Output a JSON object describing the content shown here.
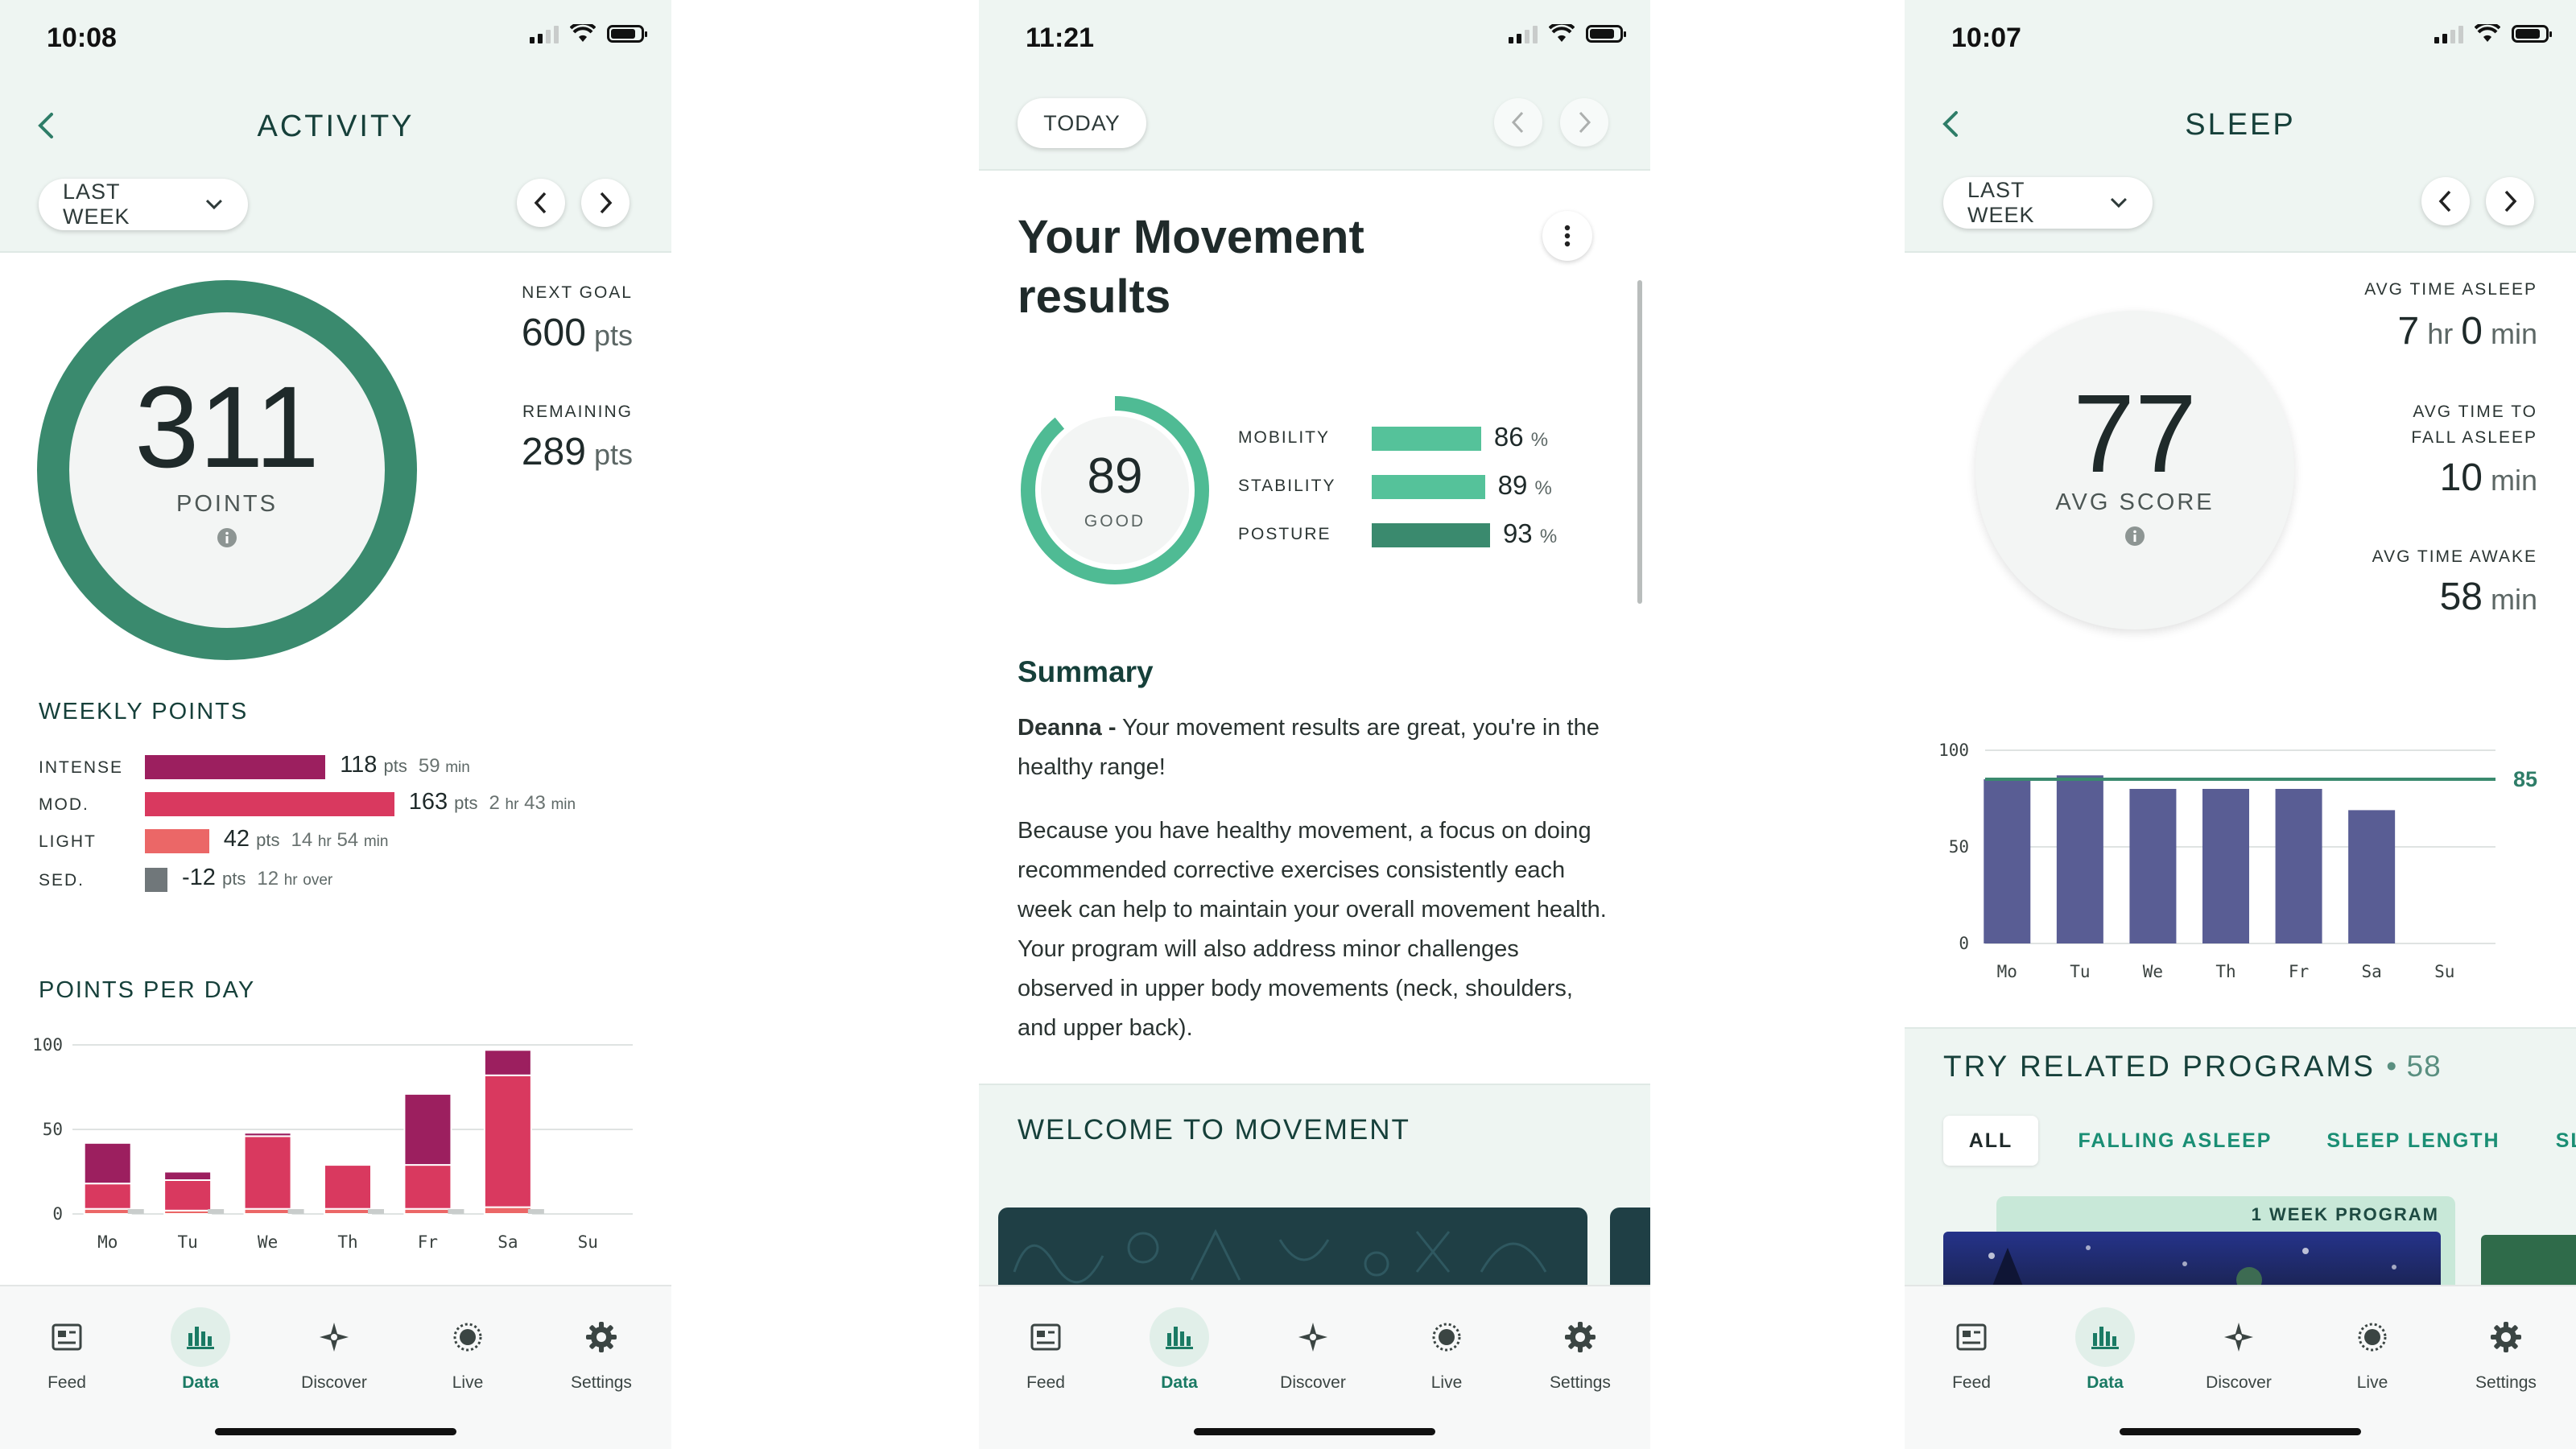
{
  "status_bars": [
    {
      "time": "10:08"
    },
    {
      "time": "11:21"
    },
    {
      "time": "10:07"
    }
  ],
  "tabbar": [
    {
      "label": "Feed",
      "icon": "feed-icon"
    },
    {
      "label": "Data",
      "icon": "bar-chart-icon",
      "active": true
    },
    {
      "label": "Discover",
      "icon": "compass-star-icon"
    },
    {
      "label": "Live",
      "icon": "live-broadcast-icon"
    },
    {
      "label": "Settings",
      "icon": "gear-icon"
    }
  ],
  "colors": {
    "intense": "#9c1f5f",
    "moderate": "#d9395f",
    "light": "#eb6767",
    "sedentary": "#70777a",
    "ring": "#3a8a6e",
    "mobility": "#55c29a",
    "posture": "#3a8a6e",
    "sleep_bar": "#595d94",
    "accent_text": "#16403a"
  },
  "activity": {
    "title": "ACTIVITY",
    "range": "LAST WEEK",
    "score": "311",
    "score_label": "POINTS",
    "next_goal_label": "NEXT GOAL",
    "next_goal_value": "600",
    "remaining_label": "REMAINING",
    "remaining_value": "289",
    "pts_unit": "pts",
    "weekly_title": "WEEKLY POINTS",
    "weekly": [
      {
        "label": "INTENSE",
        "pts": 118,
        "pts_text": "118",
        "time": "59",
        "time_unit": "min",
        "color": "#9c1f5f"
      },
      {
        "label": "MOD.",
        "pts": 163,
        "pts_text": "163",
        "time": "2",
        "time_unit": "hr",
        "time2": "43",
        "time2_unit": "min",
        "color": "#d9395f"
      },
      {
        "label": "LIGHT",
        "pts": 42,
        "pts_text": "42",
        "time": "14",
        "time_unit": "hr",
        "time2": "54",
        "time2_unit": "min",
        "color": "#eb6767"
      },
      {
        "label": "SED.",
        "pts": -12,
        "pts_text": "-12",
        "time": "12",
        "time_unit": "hr",
        "time2_unit": "over",
        "color": "#70777a"
      }
    ],
    "per_day_title": "POINTS PER DAY"
  },
  "movement": {
    "today": "TODAY",
    "heading": "Your Movement results",
    "score": "89",
    "score_word": "GOOD",
    "metrics": [
      {
        "label": "MOBILITY",
        "value": 86,
        "value_text": "86",
        "unit": "%",
        "color": "#55c29a"
      },
      {
        "label": "STABILITY",
        "value": 89,
        "value_text": "89",
        "unit": "%",
        "color": "#55c29a"
      },
      {
        "label": "POSTURE",
        "value": 93,
        "value_text": "93",
        "unit": "%",
        "color": "#3a8a6e"
      }
    ],
    "summary_title": "Summary",
    "summary_name": "Deanna -",
    "summary_p1": " Your movement results are great, you're in the healthy range!",
    "summary_p2": "Because you have healthy movement, a focus on doing recommended corrective exercises consistently each week can help to maintain your overall movement health. Your program will also address minor challenges observed in upper body movements (neck, shoulders, and upper back).",
    "welcome": "WELCOME TO MOVEMENT"
  },
  "sleep": {
    "title": "SLEEP",
    "range": "LAST WEEK",
    "score": "77",
    "score_label": "AVG SCORE",
    "asleep_label": "AVG TIME ASLEEP",
    "asleep_hr": "7",
    "asleep_hr_unit": "hr",
    "asleep_min": "0",
    "asleep_min_unit": "min",
    "fall_label_1": "AVG TIME TO",
    "fall_label_2": "FALL ASLEEP",
    "fall_min": "10",
    "fall_unit": "min",
    "awake_label": "AVG TIME AWAKE",
    "awake_min": "58",
    "awake_unit": "min",
    "programs_title": "TRY RELATED PROGRAMS",
    "programs_count": "• 58",
    "chips": [
      "ALL",
      "FALLING ASLEEP",
      "SLEEP LENGTH",
      "SLE"
    ],
    "program_badge": "1 WEEK PROGRAM"
  },
  "chart_data": [
    {
      "type": "bar",
      "stacked": true,
      "categories": [
        "Mo",
        "Tu",
        "We",
        "Th",
        "Fr",
        "Sa",
        "Su"
      ],
      "series": [
        {
          "values": [
            3,
            2,
            3,
            3,
            3,
            4,
            0
          ],
          "color": "#eb6767"
        },
        {
          "values": [
            15,
            18,
            43,
            26,
            26,
            78,
            0
          ],
          "color": "#d9395f"
        },
        {
          "values": [
            24,
            5,
            2,
            0,
            42,
            15,
            0
          ],
          "color": "#9c1f5f"
        }
      ],
      "ylim": [
        0,
        100
      ],
      "yticks": [
        0,
        50,
        100
      ],
      "grid": true
    },
    {
      "type": "bar",
      "categories": [
        "Mo",
        "Tu",
        "We",
        "Th",
        "Fr",
        "Sa",
        "Su"
      ],
      "values": [
        85,
        87,
        80,
        80,
        80,
        69,
        0
      ],
      "ylim": [
        0,
        100
      ],
      "yticks": [
        0,
        50,
        100
      ],
      "reference_line": 85,
      "reference_label": "85",
      "grid": true
    }
  ]
}
